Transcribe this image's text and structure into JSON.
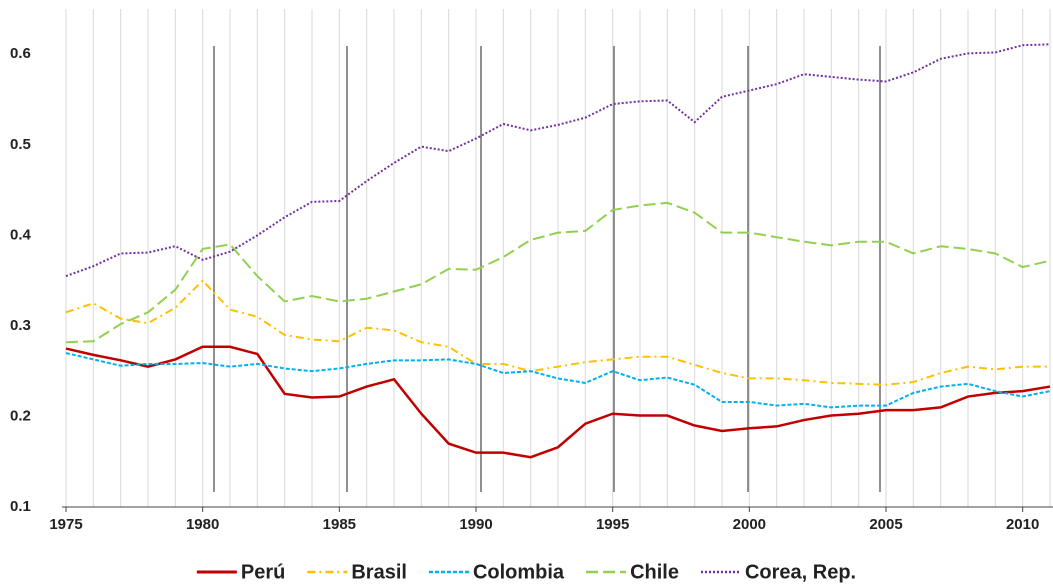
{
  "chart_data": {
    "type": "line",
    "x": [
      1975,
      1976,
      1977,
      1978,
      1979,
      1980,
      1981,
      1982,
      1983,
      1984,
      1985,
      1986,
      1987,
      1988,
      1989,
      1990,
      1991,
      1992,
      1993,
      1994,
      1995,
      1996,
      1997,
      1998,
      1999,
      2000,
      2001,
      2002,
      2003,
      2004,
      2005,
      2006,
      2007,
      2008,
      2009,
      2010,
      2011
    ],
    "series": [
      {
        "name": "Perú",
        "color": "#c00000",
        "dash": "solid",
        "values": [
          0.275,
          0.268,
          0.262,
          0.255,
          0.263,
          0.277,
          0.277,
          0.269,
          0.225,
          0.221,
          0.222,
          0.233,
          0.241,
          0.203,
          0.17,
          0.16,
          0.16,
          0.155,
          0.166,
          0.192,
          0.203,
          0.201,
          0.201,
          0.19,
          0.184,
          0.187,
          0.189,
          0.196,
          0.201,
          0.203,
          0.207,
          0.207,
          0.21,
          0.222,
          0.226,
          0.228,
          0.233
        ]
      },
      {
        "name": "Brasil",
        "color": "#ffc000",
        "dash": "dashdot",
        "values": [
          0.315,
          0.325,
          0.308,
          0.303,
          0.32,
          0.35,
          0.318,
          0.31,
          0.29,
          0.285,
          0.283,
          0.298,
          0.295,
          0.282,
          0.277,
          0.258,
          0.258,
          0.25,
          0.255,
          0.26,
          0.263,
          0.266,
          0.266,
          0.257,
          0.248,
          0.242,
          0.242,
          0.24,
          0.237,
          0.236,
          0.235,
          0.238,
          0.248,
          0.255,
          0.252,
          0.255,
          0.255
        ]
      },
      {
        "name": "Colombia",
        "color": "#00b0f0",
        "dash": "dashed",
        "values": [
          0.27,
          0.263,
          0.256,
          0.258,
          0.258,
          0.259,
          0.255,
          0.258,
          0.253,
          0.25,
          0.253,
          0.258,
          0.262,
          0.262,
          0.263,
          0.258,
          0.248,
          0.25,
          0.242,
          0.237,
          0.25,
          0.24,
          0.243,
          0.235,
          0.216,
          0.216,
          0.212,
          0.214,
          0.21,
          0.212,
          0.212,
          0.226,
          0.233,
          0.236,
          0.228,
          0.222,
          0.228
        ]
      },
      {
        "name": "Chile",
        "color": "#92d050",
        "dash": "longdash",
        "values": [
          0.282,
          0.283,
          0.302,
          0.315,
          0.34,
          0.385,
          0.39,
          0.355,
          0.327,
          0.333,
          0.327,
          0.33,
          0.338,
          0.346,
          0.363,
          0.362,
          0.376,
          0.395,
          0.403,
          0.405,
          0.428,
          0.433,
          0.436,
          0.425,
          0.403,
          0.403,
          0.398,
          0.393,
          0.389,
          0.393,
          0.393,
          0.38,
          0.388,
          0.385,
          0.38,
          0.365,
          0.372
        ]
      },
      {
        "name": "Corea, Rep.",
        "color": "#7030a0",
        "dash": "dotted",
        "values": [
          0.355,
          0.366,
          0.38,
          0.381,
          0.388,
          0.373,
          0.382,
          0.4,
          0.42,
          0.437,
          0.438,
          0.46,
          0.48,
          0.498,
          0.493,
          0.507,
          0.523,
          0.516,
          0.522,
          0.53,
          0.545,
          0.548,
          0.549,
          0.525,
          0.553,
          0.56,
          0.567,
          0.578,
          0.575,
          0.572,
          0.57,
          0.58,
          0.595,
          0.601,
          0.602,
          0.61,
          0.611
        ]
      }
    ],
    "xlim": [
      1975,
      2011
    ],
    "xticks": [
      1975,
      1980,
      1985,
      1990,
      1995,
      2000,
      2005,
      2010
    ],
    "ylim": [
      0.1,
      0.65
    ],
    "yticks": [
      0.1,
      0.2,
      0.3,
      0.4,
      0.5,
      0.6
    ],
    "legend": "bottom"
  }
}
